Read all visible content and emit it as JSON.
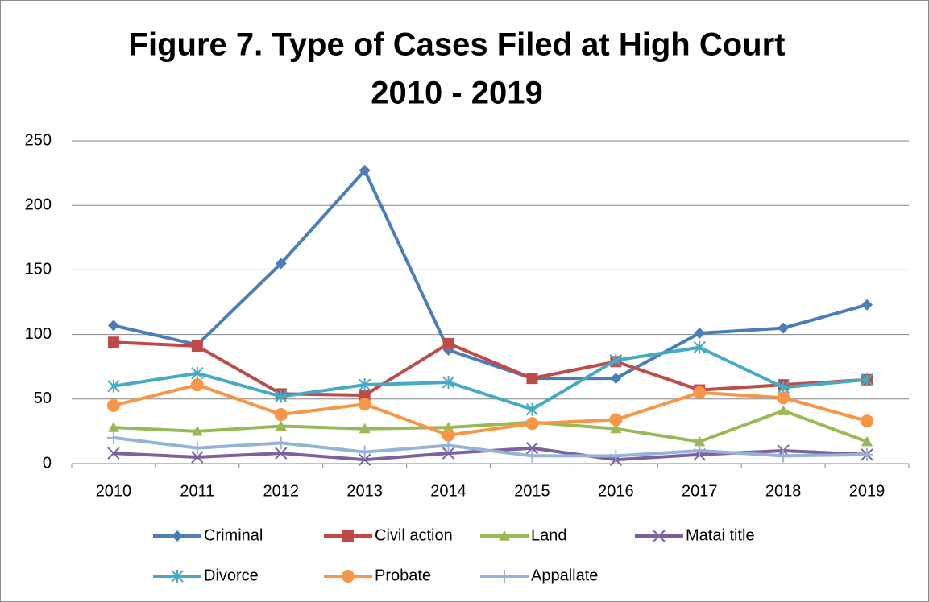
{
  "chart_data": {
    "type": "line",
    "title": [
      "Figure 7. Type of Cases Filed at High Court",
      "2010 - 2019"
    ],
    "categories": [
      "2010",
      "2011",
      "2012",
      "2013",
      "2014",
      "2015",
      "2016",
      "2017",
      "2018",
      "2019"
    ],
    "series": [
      {
        "name": "Criminal",
        "color": "#4a7ebb",
        "marker": "diamond",
        "values": [
          107,
          92,
          155,
          227,
          88,
          66,
          66,
          101,
          105,
          123
        ]
      },
      {
        "name": "Civil action",
        "color": "#be4b48",
        "marker": "square",
        "values": [
          94,
          91,
          54,
          53,
          93,
          66,
          79,
          57,
          61,
          65
        ]
      },
      {
        "name": "Land",
        "color": "#98b954",
        "marker": "triangle",
        "values": [
          28,
          25,
          29,
          27,
          28,
          32,
          27,
          17,
          41,
          17
        ]
      },
      {
        "name": "Matai title",
        "color": "#7d60a0",
        "marker": "x",
        "values": [
          8,
          5,
          8,
          3,
          8,
          12,
          3,
          7,
          10,
          7
        ]
      },
      {
        "name": "Divorce",
        "color": "#46aac5",
        "marker": "asterisk",
        "values": [
          60,
          70,
          52,
          61,
          63,
          42,
          80,
          90,
          59,
          65
        ]
      },
      {
        "name": "Probate",
        "color": "#f79646",
        "marker": "circle",
        "values": [
          45,
          61,
          38,
          46,
          22,
          31,
          34,
          55,
          51,
          33
        ]
      },
      {
        "name": "Appallate",
        "color": "#95b3d7",
        "marker": "plus",
        "values": [
          20,
          12,
          16,
          9,
          14,
          6,
          6,
          10,
          6,
          7
        ]
      }
    ],
    "ylim": [
      0,
      250
    ],
    "yticks": [
      0,
      50,
      100,
      150,
      200,
      250
    ],
    "grid": true,
    "legend": "bottom"
  }
}
